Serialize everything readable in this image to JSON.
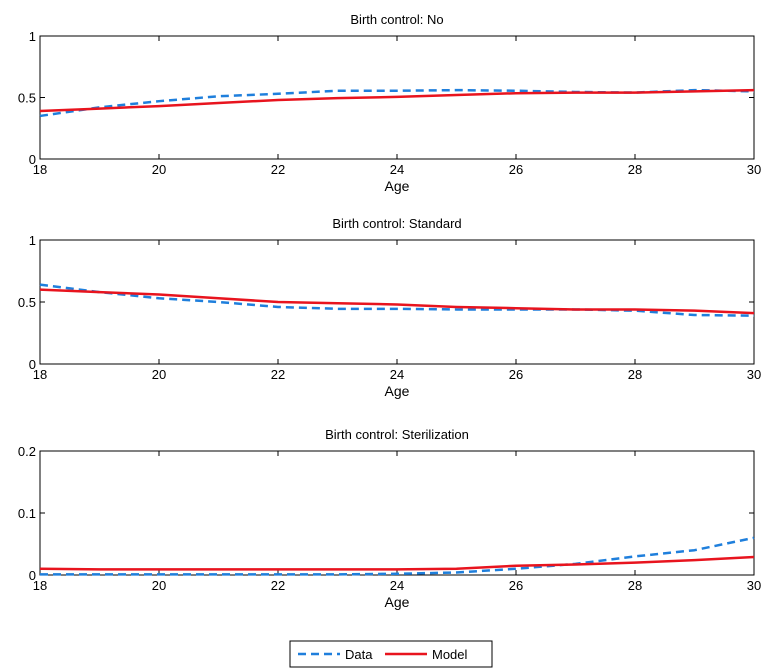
{
  "chart_data": [
    {
      "type": "line",
      "title": "Birth control: No",
      "xlabel": "Age",
      "ylabel": "",
      "xlim": [
        18,
        30
      ],
      "ylim": [
        0,
        1
      ],
      "xticks": [
        "18",
        "20",
        "22",
        "24",
        "26",
        "28",
        "30"
      ],
      "yticks": [
        "0",
        "0.5",
        "1"
      ],
      "x": [
        18,
        19,
        20,
        21,
        22,
        23,
        24,
        25,
        26,
        27,
        28,
        29,
        30
      ],
      "series": [
        {
          "name": "Data",
          "values": [
            0.35,
            0.42,
            0.47,
            0.51,
            0.53,
            0.555,
            0.555,
            0.56,
            0.555,
            0.545,
            0.54,
            0.56,
            0.55
          ]
        },
        {
          "name": "Model",
          "values": [
            0.39,
            0.41,
            0.43,
            0.455,
            0.48,
            0.495,
            0.505,
            0.52,
            0.535,
            0.54,
            0.54,
            0.55,
            0.56
          ]
        }
      ]
    },
    {
      "type": "line",
      "title": "Birth control: Standard",
      "xlabel": "Age",
      "ylabel": "",
      "xlim": [
        18,
        30
      ],
      "ylim": [
        0,
        1
      ],
      "xticks": [
        "18",
        "20",
        "22",
        "24",
        "26",
        "28",
        "30"
      ],
      "yticks": [
        "0",
        "0.5",
        "1"
      ],
      "x": [
        18,
        19,
        20,
        21,
        22,
        23,
        24,
        25,
        26,
        27,
        28,
        29,
        30
      ],
      "series": [
        {
          "name": "Data",
          "values": [
            0.64,
            0.58,
            0.53,
            0.5,
            0.46,
            0.445,
            0.445,
            0.44,
            0.44,
            0.44,
            0.43,
            0.395,
            0.39
          ]
        },
        {
          "name": "Model",
          "values": [
            0.6,
            0.58,
            0.56,
            0.53,
            0.5,
            0.49,
            0.48,
            0.46,
            0.45,
            0.44,
            0.44,
            0.43,
            0.41
          ]
        }
      ]
    },
    {
      "type": "line",
      "title": "Birth control: Sterilization",
      "xlabel": "Age",
      "ylabel": "",
      "xlim": [
        18,
        30
      ],
      "ylim": [
        0,
        0.2
      ],
      "xticks": [
        "18",
        "20",
        "22",
        "24",
        "26",
        "28",
        "30"
      ],
      "yticks": [
        "0",
        "0.1",
        "0.2"
      ],
      "x": [
        18,
        19,
        20,
        21,
        22,
        23,
        24,
        25,
        26,
        27,
        28,
        29,
        30
      ],
      "series": [
        {
          "name": "Data",
          "values": [
            0.001,
            0.001,
            0.001,
            0.001,
            0.001,
            0.001,
            0.002,
            0.004,
            0.01,
            0.018,
            0.03,
            0.04,
            0.06
          ]
        },
        {
          "name": "Model",
          "values": [
            0.01,
            0.009,
            0.009,
            0.009,
            0.009,
            0.009,
            0.009,
            0.01,
            0.015,
            0.017,
            0.02,
            0.024,
            0.029
          ]
        }
      ]
    }
  ],
  "legend": {
    "placement": "bottom-center",
    "items": [
      {
        "label": "Data",
        "color": "#1f7fdc",
        "dashed": true
      },
      {
        "label": "Model",
        "color": "#e8141e",
        "dashed": false
      }
    ]
  },
  "colors": {
    "data": "#1f7fdc",
    "model": "#e8141e",
    "axis": "#000000"
  }
}
